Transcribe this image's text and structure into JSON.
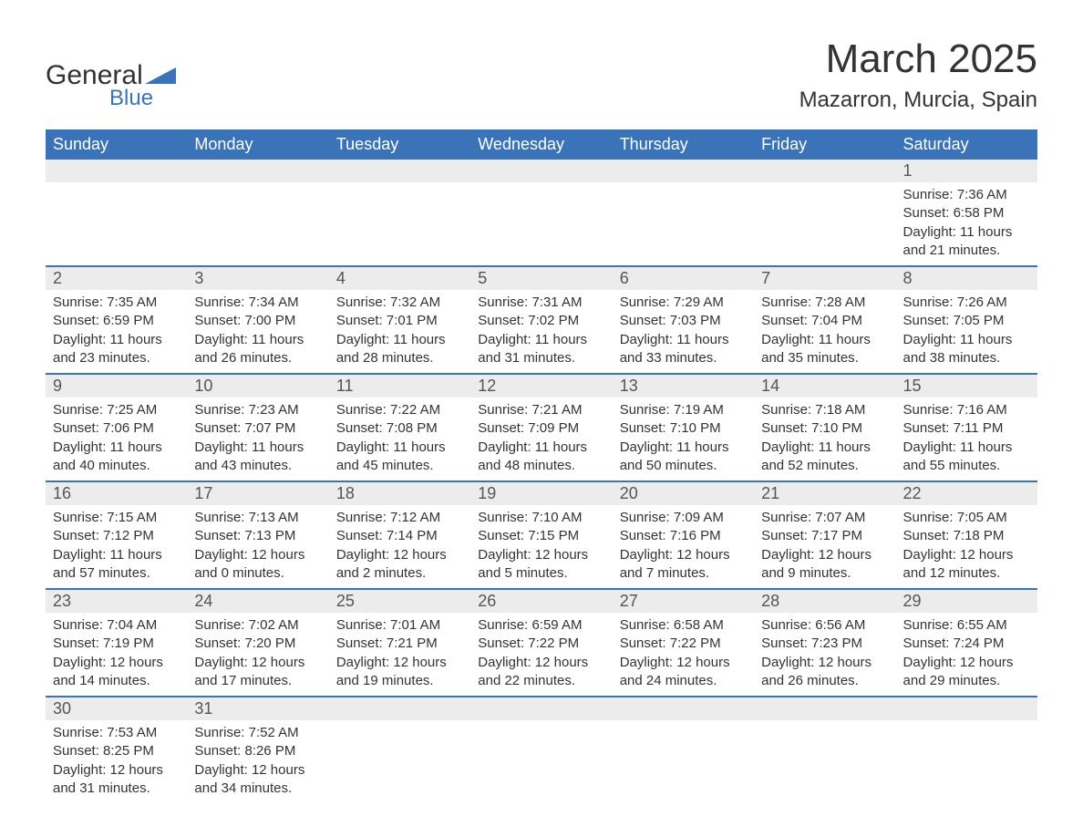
{
  "logo": {
    "text_general": "General",
    "text_blue": "Blue",
    "shape_color": "#3b73b9"
  },
  "header": {
    "month_title": "March 2025",
    "location": "Mazarron, Murcia, Spain"
  },
  "colors": {
    "header_bg": "#3b73b9",
    "header_text": "#ffffff",
    "daynum_bg": "#ececec",
    "row_divider": "#3b73b9",
    "body_text": "#333333"
  },
  "typography": {
    "title_fontsize": 44,
    "location_fontsize": 24,
    "th_fontsize": 18,
    "daynum_fontsize": 18,
    "body_fontsize": 15
  },
  "layout": {
    "columns": 7,
    "rows": 6,
    "first_day_column_index": 6
  },
  "week_headers": [
    "Sunday",
    "Monday",
    "Tuesday",
    "Wednesday",
    "Thursday",
    "Friday",
    "Saturday"
  ],
  "days": [
    {
      "n": "1",
      "sunrise": "Sunrise: 7:36 AM",
      "sunset": "Sunset: 6:58 PM",
      "dl1": "Daylight: 11 hours",
      "dl2": "and 21 minutes."
    },
    {
      "n": "2",
      "sunrise": "Sunrise: 7:35 AM",
      "sunset": "Sunset: 6:59 PM",
      "dl1": "Daylight: 11 hours",
      "dl2": "and 23 minutes."
    },
    {
      "n": "3",
      "sunrise": "Sunrise: 7:34 AM",
      "sunset": "Sunset: 7:00 PM",
      "dl1": "Daylight: 11 hours",
      "dl2": "and 26 minutes."
    },
    {
      "n": "4",
      "sunrise": "Sunrise: 7:32 AM",
      "sunset": "Sunset: 7:01 PM",
      "dl1": "Daylight: 11 hours",
      "dl2": "and 28 minutes."
    },
    {
      "n": "5",
      "sunrise": "Sunrise: 7:31 AM",
      "sunset": "Sunset: 7:02 PM",
      "dl1": "Daylight: 11 hours",
      "dl2": "and 31 minutes."
    },
    {
      "n": "6",
      "sunrise": "Sunrise: 7:29 AM",
      "sunset": "Sunset: 7:03 PM",
      "dl1": "Daylight: 11 hours",
      "dl2": "and 33 minutes."
    },
    {
      "n": "7",
      "sunrise": "Sunrise: 7:28 AM",
      "sunset": "Sunset: 7:04 PM",
      "dl1": "Daylight: 11 hours",
      "dl2": "and 35 minutes."
    },
    {
      "n": "8",
      "sunrise": "Sunrise: 7:26 AM",
      "sunset": "Sunset: 7:05 PM",
      "dl1": "Daylight: 11 hours",
      "dl2": "and 38 minutes."
    },
    {
      "n": "9",
      "sunrise": "Sunrise: 7:25 AM",
      "sunset": "Sunset: 7:06 PM",
      "dl1": "Daylight: 11 hours",
      "dl2": "and 40 minutes."
    },
    {
      "n": "10",
      "sunrise": "Sunrise: 7:23 AM",
      "sunset": "Sunset: 7:07 PM",
      "dl1": "Daylight: 11 hours",
      "dl2": "and 43 minutes."
    },
    {
      "n": "11",
      "sunrise": "Sunrise: 7:22 AM",
      "sunset": "Sunset: 7:08 PM",
      "dl1": "Daylight: 11 hours",
      "dl2": "and 45 minutes."
    },
    {
      "n": "12",
      "sunrise": "Sunrise: 7:21 AM",
      "sunset": "Sunset: 7:09 PM",
      "dl1": "Daylight: 11 hours",
      "dl2": "and 48 minutes."
    },
    {
      "n": "13",
      "sunrise": "Sunrise: 7:19 AM",
      "sunset": "Sunset: 7:10 PM",
      "dl1": "Daylight: 11 hours",
      "dl2": "and 50 minutes."
    },
    {
      "n": "14",
      "sunrise": "Sunrise: 7:18 AM",
      "sunset": "Sunset: 7:10 PM",
      "dl1": "Daylight: 11 hours",
      "dl2": "and 52 minutes."
    },
    {
      "n": "15",
      "sunrise": "Sunrise: 7:16 AM",
      "sunset": "Sunset: 7:11 PM",
      "dl1": "Daylight: 11 hours",
      "dl2": "and 55 minutes."
    },
    {
      "n": "16",
      "sunrise": "Sunrise: 7:15 AM",
      "sunset": "Sunset: 7:12 PM",
      "dl1": "Daylight: 11 hours",
      "dl2": "and 57 minutes."
    },
    {
      "n": "17",
      "sunrise": "Sunrise: 7:13 AM",
      "sunset": "Sunset: 7:13 PM",
      "dl1": "Daylight: 12 hours",
      "dl2": "and 0 minutes."
    },
    {
      "n": "18",
      "sunrise": "Sunrise: 7:12 AM",
      "sunset": "Sunset: 7:14 PM",
      "dl1": "Daylight: 12 hours",
      "dl2": "and 2 minutes."
    },
    {
      "n": "19",
      "sunrise": "Sunrise: 7:10 AM",
      "sunset": "Sunset: 7:15 PM",
      "dl1": "Daylight: 12 hours",
      "dl2": "and 5 minutes."
    },
    {
      "n": "20",
      "sunrise": "Sunrise: 7:09 AM",
      "sunset": "Sunset: 7:16 PM",
      "dl1": "Daylight: 12 hours",
      "dl2": "and 7 minutes."
    },
    {
      "n": "21",
      "sunrise": "Sunrise: 7:07 AM",
      "sunset": "Sunset: 7:17 PM",
      "dl1": "Daylight: 12 hours",
      "dl2": "and 9 minutes."
    },
    {
      "n": "22",
      "sunrise": "Sunrise: 7:05 AM",
      "sunset": "Sunset: 7:18 PM",
      "dl1": "Daylight: 12 hours",
      "dl2": "and 12 minutes."
    },
    {
      "n": "23",
      "sunrise": "Sunrise: 7:04 AM",
      "sunset": "Sunset: 7:19 PM",
      "dl1": "Daylight: 12 hours",
      "dl2": "and 14 minutes."
    },
    {
      "n": "24",
      "sunrise": "Sunrise: 7:02 AM",
      "sunset": "Sunset: 7:20 PM",
      "dl1": "Daylight: 12 hours",
      "dl2": "and 17 minutes."
    },
    {
      "n": "25",
      "sunrise": "Sunrise: 7:01 AM",
      "sunset": "Sunset: 7:21 PM",
      "dl1": "Daylight: 12 hours",
      "dl2": "and 19 minutes."
    },
    {
      "n": "26",
      "sunrise": "Sunrise: 6:59 AM",
      "sunset": "Sunset: 7:22 PM",
      "dl1": "Daylight: 12 hours",
      "dl2": "and 22 minutes."
    },
    {
      "n": "27",
      "sunrise": "Sunrise: 6:58 AM",
      "sunset": "Sunset: 7:22 PM",
      "dl1": "Daylight: 12 hours",
      "dl2": "and 24 minutes."
    },
    {
      "n": "28",
      "sunrise": "Sunrise: 6:56 AM",
      "sunset": "Sunset: 7:23 PM",
      "dl1": "Daylight: 12 hours",
      "dl2": "and 26 minutes."
    },
    {
      "n": "29",
      "sunrise": "Sunrise: 6:55 AM",
      "sunset": "Sunset: 7:24 PM",
      "dl1": "Daylight: 12 hours",
      "dl2": "and 29 minutes."
    },
    {
      "n": "30",
      "sunrise": "Sunrise: 7:53 AM",
      "sunset": "Sunset: 8:25 PM",
      "dl1": "Daylight: 12 hours",
      "dl2": "and 31 minutes."
    },
    {
      "n": "31",
      "sunrise": "Sunrise: 7:52 AM",
      "sunset": "Sunset: 8:26 PM",
      "dl1": "Daylight: 12 hours",
      "dl2": "and 34 minutes."
    }
  ]
}
